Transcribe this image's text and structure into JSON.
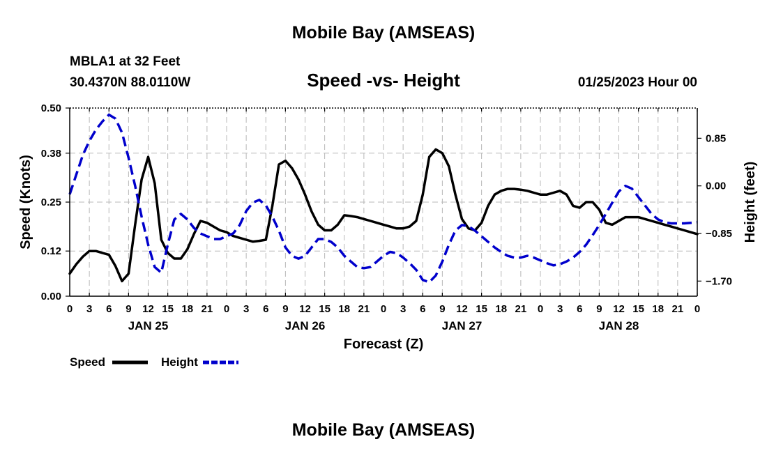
{
  "header": {
    "title": "Mobile Bay (AMSEAS)",
    "station": "MBLA1 at 32 Feet",
    "coords": "30.4370N  88.0110W",
    "datetime": "01/25/2023 Hour 00"
  },
  "footer": {
    "title": "Mobile Bay (AMSEAS)"
  },
  "chart_data": {
    "type": "line",
    "title": "Speed -vs- Height",
    "xlabel": "Forecast (Z)",
    "ylabel": "Speed (Knots)",
    "y2label": "Height (feet)",
    "x_hours_range": [
      0,
      96
    ],
    "x_tick_labels": [
      "0",
      "3",
      "6",
      "9",
      "12",
      "15",
      "18",
      "21",
      "0",
      "3",
      "6",
      "9",
      "12",
      "15",
      "18",
      "21",
      "0",
      "3",
      "6",
      "9",
      "12",
      "15",
      "18",
      "21",
      "0",
      "3",
      "6",
      "9",
      "12",
      "15",
      "18",
      "21",
      "0"
    ],
    "day_labels": [
      {
        "label": "JAN 25",
        "hour": 12
      },
      {
        "label": "JAN 26",
        "hour": 36
      },
      {
        "label": "JAN 27",
        "hour": 60
      },
      {
        "label": "JAN 28",
        "hour": 84
      }
    ],
    "ylim": [
      0,
      0.5
    ],
    "y_ticks": [
      0.0,
      0.12,
      0.25,
      0.38,
      0.5
    ],
    "y_tick_labels": [
      "0.00",
      "0.12",
      "0.25",
      "0.38",
      "0.50"
    ],
    "y2lim": [
      -1.97,
      1.39
    ],
    "y2_ticks": [
      -1.7,
      -0.85,
      0.0,
      0.85
    ],
    "y2_tick_labels": [
      "−1.70",
      "−0.85",
      "0.00",
      "0.85"
    ],
    "grid": true,
    "legend": {
      "position": "bottom-left",
      "items": [
        "Speed",
        "Height"
      ]
    },
    "series": [
      {
        "name": "Speed",
        "axis": "left",
        "color": "#000000",
        "style": "solid",
        "x": [
          0,
          1,
          2,
          3,
          4,
          5,
          6,
          7,
          8,
          9,
          10,
          11,
          12,
          13,
          14,
          15,
          16,
          17,
          18,
          19,
          20,
          21,
          22,
          23,
          24,
          25,
          26,
          27,
          28,
          29,
          30,
          31,
          32,
          33,
          34,
          35,
          36,
          37,
          38,
          39,
          40,
          41,
          42,
          43,
          44,
          45,
          46,
          47,
          48,
          49,
          50,
          51,
          52,
          53,
          54,
          55,
          56,
          57,
          58,
          59,
          60,
          61,
          62,
          63,
          64,
          65,
          66,
          67,
          68,
          69,
          70,
          71,
          72,
          73,
          74,
          75,
          76,
          77,
          78,
          79,
          80,
          81,
          82,
          83,
          84,
          85,
          86,
          87,
          88,
          89,
          90,
          91,
          92,
          93,
          94,
          95,
          96
        ],
        "values": [
          0.06,
          0.085,
          0.105,
          0.12,
          0.12,
          0.115,
          0.11,
          0.08,
          0.04,
          0.06,
          0.19,
          0.31,
          0.37,
          0.3,
          0.15,
          0.115,
          0.1,
          0.1,
          0.125,
          0.165,
          0.2,
          0.195,
          0.185,
          0.175,
          0.17,
          0.16,
          0.155,
          0.15,
          0.145,
          0.147,
          0.15,
          0.24,
          0.35,
          0.36,
          0.34,
          0.31,
          0.27,
          0.225,
          0.19,
          0.175,
          0.175,
          0.19,
          0.215,
          0.213,
          0.21,
          0.205,
          0.2,
          0.195,
          0.19,
          0.185,
          0.18,
          0.18,
          0.185,
          0.2,
          0.27,
          0.37,
          0.39,
          0.38,
          0.345,
          0.27,
          0.205,
          0.18,
          0.175,
          0.195,
          0.24,
          0.27,
          0.28,
          0.285,
          0.285,
          0.283,
          0.28,
          0.275,
          0.27,
          0.27,
          0.275,
          0.28,
          0.27,
          0.24,
          0.235,
          0.25,
          0.25,
          0.23,
          0.195,
          0.19,
          0.2,
          0.21,
          0.21,
          0.21,
          0.205,
          0.2,
          0.195,
          0.19,
          0.185,
          0.18,
          0.175,
          0.17,
          0.165
        ]
      },
      {
        "name": "Height",
        "axis": "right",
        "color": "#0000cc",
        "style": "dashed",
        "x": [
          0,
          1,
          2,
          3,
          4,
          5,
          6,
          7,
          8,
          9,
          10,
          11,
          12,
          13,
          14,
          15,
          16,
          17,
          18,
          19,
          20,
          21,
          22,
          23,
          24,
          25,
          26,
          27,
          28,
          29,
          30,
          31,
          32,
          33,
          34,
          35,
          36,
          37,
          38,
          39,
          40,
          41,
          42,
          43,
          44,
          45,
          46,
          47,
          48,
          49,
          50,
          51,
          52,
          53,
          54,
          55,
          56,
          57,
          58,
          59,
          60,
          61,
          62,
          63,
          64,
          65,
          66,
          67,
          68,
          69,
          70,
          71,
          72,
          73,
          74,
          75,
          76,
          77,
          78,
          79,
          80,
          81,
          82,
          83,
          84,
          85,
          86,
          87,
          88,
          89,
          90,
          91,
          92,
          93,
          94,
          95,
          96
        ],
        "values": [
          -0.15,
          0.2,
          0.55,
          0.8,
          1.0,
          1.15,
          1.27,
          1.2,
          0.95,
          0.5,
          0.0,
          -0.55,
          -1.05,
          -1.45,
          -1.55,
          -1.05,
          -0.6,
          -0.5,
          -0.6,
          -0.75,
          -0.85,
          -0.9,
          -0.95,
          -0.95,
          -0.9,
          -0.85,
          -0.7,
          -0.45,
          -0.3,
          -0.25,
          -0.35,
          -0.55,
          -0.8,
          -1.1,
          -1.25,
          -1.3,
          -1.25,
          -1.1,
          -0.95,
          -0.95,
          -1.0,
          -1.1,
          -1.25,
          -1.35,
          -1.45,
          -1.47,
          -1.45,
          -1.35,
          -1.25,
          -1.18,
          -1.2,
          -1.28,
          -1.38,
          -1.5,
          -1.68,
          -1.72,
          -1.6,
          -1.35,
          -1.05,
          -0.8,
          -0.7,
          -0.72,
          -0.8,
          -0.9,
          -1.0,
          -1.1,
          -1.18,
          -1.25,
          -1.28,
          -1.28,
          -1.25,
          -1.28,
          -1.33,
          -1.38,
          -1.42,
          -1.4,
          -1.35,
          -1.28,
          -1.18,
          -1.05,
          -0.88,
          -0.7,
          -0.5,
          -0.3,
          -0.1,
          0.0,
          -0.05,
          -0.2,
          -0.35,
          -0.5,
          -0.6,
          -0.65,
          -0.67,
          -0.67,
          -0.67,
          -0.66,
          -0.65
        ]
      }
    ]
  }
}
